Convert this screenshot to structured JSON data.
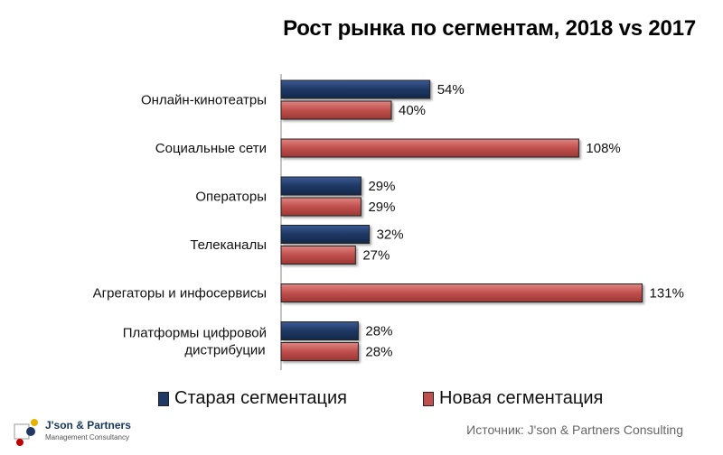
{
  "chart_data": {
    "type": "bar",
    "orientation": "horizontal",
    "title": "Рост рынка по сегментам, 2018 vs 2017",
    "categories": [
      "Онлайн-кинотеатры",
      "Социальные сети",
      "Операторы",
      "Телеканалы",
      "Агрегаторы и инфосервисы",
      "Платформы цифровой дистрибуции"
    ],
    "series": [
      {
        "name": "Старая сегментация",
        "color": "#1f3864",
        "values": [
          54,
          null,
          29,
          32,
          null,
          28
        ]
      },
      {
        "name": "Новая сегментация",
        "color": "#c0504d",
        "values": [
          40,
          108,
          29,
          27,
          131,
          28
        ]
      }
    ],
    "value_suffix": "%",
    "xlim": [
      0,
      140
    ],
    "grid": false,
    "legend_position": "bottom"
  },
  "source": "Источник: J'son & Partners Consulting",
  "logo": {
    "name": "J'son & Partners",
    "subtitle": "Management Consultancy"
  }
}
